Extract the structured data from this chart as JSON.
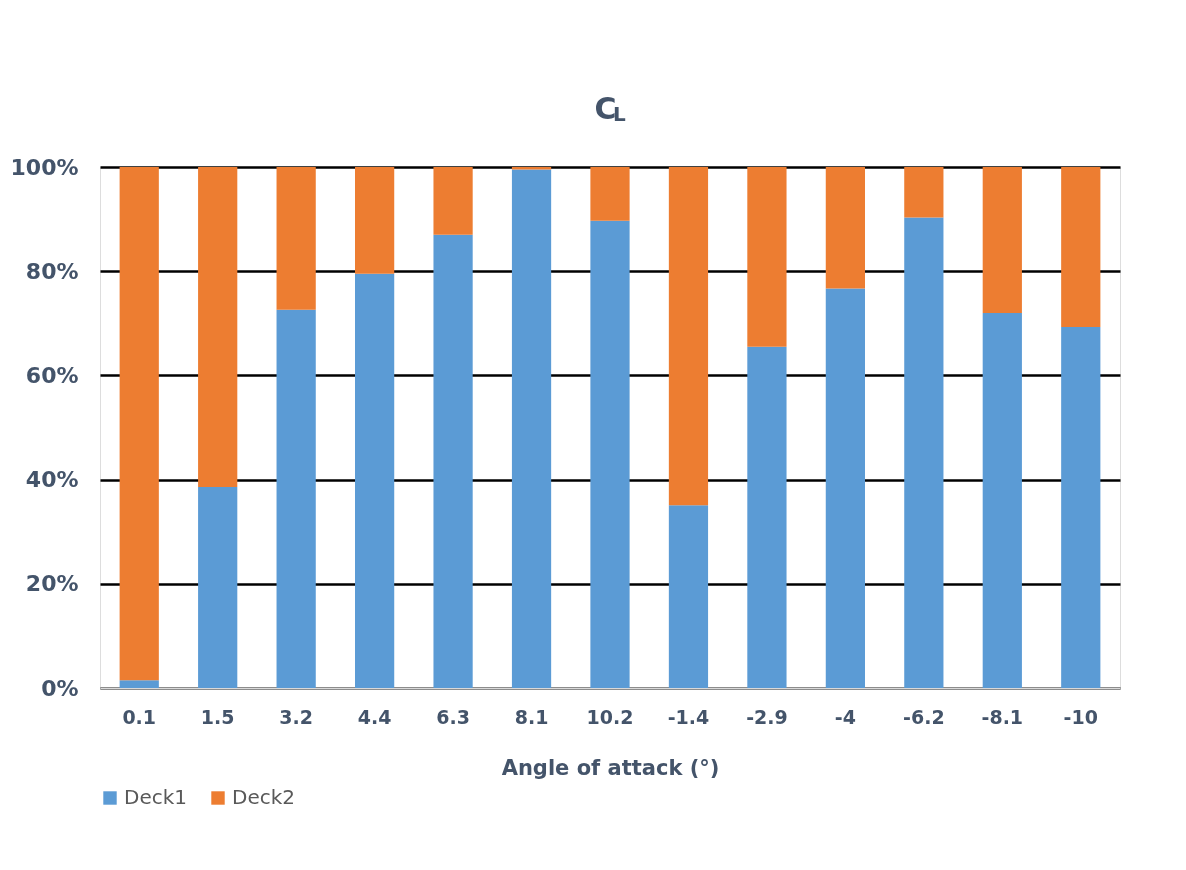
{
  "chart_data": {
    "type": "bar",
    "stacked": true,
    "title": "C$_{L}$",
    "xlabel": "Angle of attack (°)",
    "categories": [
      "0.1",
      "1.5",
      "3.2",
      "4.4",
      "6.3",
      "8.1",
      "10.2",
      "-1.4",
      "-2.9",
      "-4",
      "-6.2",
      "-8.1",
      "-10"
    ],
    "series": [
      {
        "name": "Deck1",
        "color": "#5b9bd5",
        "values": [
          1.5,
          38.6,
          72.6,
          79.5,
          87.0,
          99.5,
          89.7,
          35.1,
          65.5,
          76.7,
          90.3,
          72.0,
          69.3
        ]
      },
      {
        "name": "Deck2",
        "color": "#ed7d31",
        "values": [
          98.5,
          61.4,
          27.4,
          20.5,
          13.0,
          0.5,
          10.3,
          64.9,
          34.5,
          23.3,
          9.7,
          28.0,
          30.7
        ]
      }
    ],
    "ylim": [
      0,
      100
    ],
    "yticks": [
      {
        "value": 0,
        "label": "0%"
      },
      {
        "value": 20,
        "label": "20%"
      },
      {
        "value": 40,
        "label": "40%"
      },
      {
        "value": 60,
        "label": "60%"
      },
      {
        "value": 80,
        "label": "80%"
      },
      {
        "value": 100,
        "label": "100%"
      }
    ],
    "grid": "y",
    "legend": "bottom"
  }
}
